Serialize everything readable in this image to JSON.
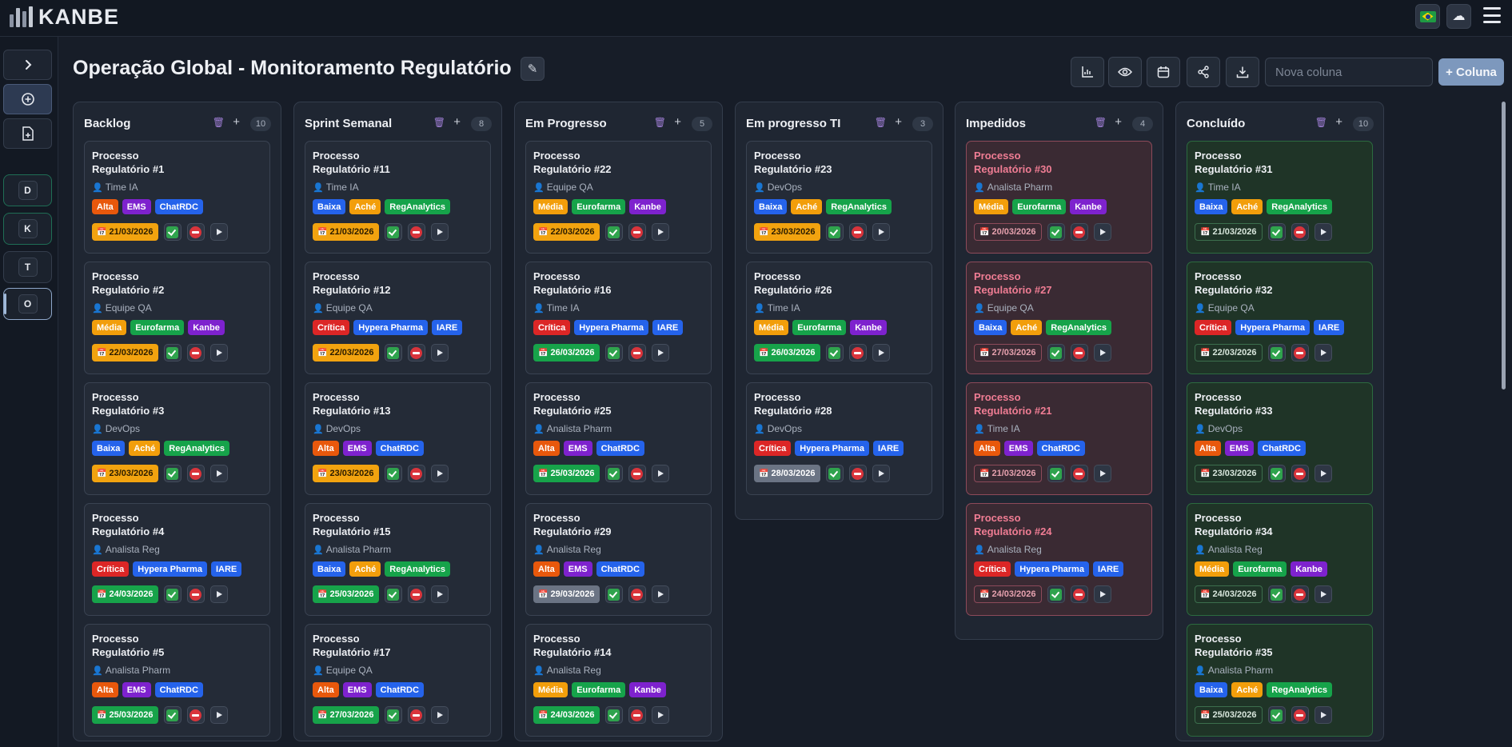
{
  "app": {
    "logo_text": "KANBE"
  },
  "header": {
    "flag_icon": "brazil-flag-icon",
    "cloud_icon": "cloud-icon",
    "menu_icon": "hamburger-menu-icon"
  },
  "sidebar": {
    "workspaces": [
      "D",
      "K",
      "T",
      "O"
    ],
    "selected": "O"
  },
  "board": {
    "title": "Operação Global - Monitoramento Regulatório",
    "new_column_placeholder": "Nova coluna",
    "add_column_label": "+ Coluna",
    "toolbar_icons": [
      "chart-icon",
      "eye-icon",
      "calendar-icon",
      "share-icon",
      "download-icon"
    ]
  },
  "columns": [
    {
      "title": "Backlog",
      "count": "10",
      "cards": [
        {
          "title": "Processo Regulatório #1",
          "owner": "Time IA",
          "tags": [
            [
              "Alta",
              "#e8580c"
            ],
            [
              "EMS",
              "#7e22ce"
            ],
            [
              "ChatRDC",
              "#2563eb"
            ]
          ],
          "date": "21/03/2026",
          "date_style": "orange"
        },
        {
          "title": "Processo Regulatório #2",
          "owner": "Equipe QA",
          "tags": [
            [
              "Média",
              "#f29e0b"
            ],
            [
              "Eurofarma",
              "#16a34a"
            ],
            [
              "Kanbe",
              "#7e22ce"
            ]
          ],
          "date": "22/03/2026",
          "date_style": "orange"
        },
        {
          "title": "Processo Regulatório #3",
          "owner": "DevOps",
          "tags": [
            [
              "Baixa",
              "#2563eb"
            ],
            [
              "Aché",
              "#f29e0b"
            ],
            [
              "RegAnalytics",
              "#16a34a"
            ]
          ],
          "date": "23/03/2026",
          "date_style": "orange"
        },
        {
          "title": "Processo Regulatório #4",
          "owner": "Analista Reg",
          "tags": [
            [
              "Crítica",
              "#dc2626"
            ],
            [
              "Hypera Pharma",
              "#2563eb"
            ],
            [
              "IARE",
              "#2563eb"
            ]
          ],
          "date": "24/03/2026",
          "date_style": "green"
        },
        {
          "title": "Processo Regulatório #5",
          "owner": "Analista Pharm",
          "tags": [
            [
              "Alta",
              "#e8580c"
            ],
            [
              "EMS",
              "#7e22ce"
            ],
            [
              "ChatRDC",
              "#2563eb"
            ]
          ],
          "date": "25/03/2026",
          "date_style": "green"
        }
      ]
    },
    {
      "title": "Sprint Semanal",
      "count": "8",
      "cards": [
        {
          "title": "Processo Regulatório #11",
          "owner": "Time IA",
          "tags": [
            [
              "Baixa",
              "#2563eb"
            ],
            [
              "Aché",
              "#f29e0b"
            ],
            [
              "RegAnalytics",
              "#16a34a"
            ]
          ],
          "date": "21/03/2026",
          "date_style": "orange"
        },
        {
          "title": "Processo Regulatório #12",
          "owner": "Equipe QA",
          "tags": [
            [
              "Crítica",
              "#dc2626"
            ],
            [
              "Hypera Pharma",
              "#2563eb"
            ],
            [
              "IARE",
              "#2563eb"
            ]
          ],
          "date": "22/03/2026",
          "date_style": "orange"
        },
        {
          "title": "Processo Regulatório #13",
          "owner": "DevOps",
          "tags": [
            [
              "Alta",
              "#e8580c"
            ],
            [
              "EMS",
              "#7e22ce"
            ],
            [
              "ChatRDC",
              "#2563eb"
            ]
          ],
          "date": "23/03/2026",
          "date_style": "orange"
        },
        {
          "title": "Processo Regulatório #15",
          "owner": "Analista Pharm",
          "tags": [
            [
              "Baixa",
              "#2563eb"
            ],
            [
              "Aché",
              "#f29e0b"
            ],
            [
              "RegAnalytics",
              "#16a34a"
            ]
          ],
          "date": "25/03/2026",
          "date_style": "green"
        },
        {
          "title": "Processo Regulatório #17",
          "owner": "Equipe QA",
          "tags": [
            [
              "Alta",
              "#e8580c"
            ],
            [
              "EMS",
              "#7e22ce"
            ],
            [
              "ChatRDC",
              "#2563eb"
            ]
          ],
          "date": "27/03/2026",
          "date_style": "green"
        }
      ]
    },
    {
      "title": "Em Progresso",
      "count": "5",
      "cards": [
        {
          "title": "Processo Regulatório #22",
          "owner": "Equipe QA",
          "tags": [
            [
              "Média",
              "#f29e0b"
            ],
            [
              "Eurofarma",
              "#16a34a"
            ],
            [
              "Kanbe",
              "#7e22ce"
            ]
          ],
          "date": "22/03/2026",
          "date_style": "orange"
        },
        {
          "title": "Processo Regulatório #16",
          "owner": "Time IA",
          "tags": [
            [
              "Crítica",
              "#dc2626"
            ],
            [
              "Hypera Pharma",
              "#2563eb"
            ],
            [
              "IARE",
              "#2563eb"
            ]
          ],
          "date": "26/03/2026",
          "date_style": "green"
        },
        {
          "title": "Processo Regulatório #25",
          "owner": "Analista Pharm",
          "tags": [
            [
              "Alta",
              "#e8580c"
            ],
            [
              "EMS",
              "#7e22ce"
            ],
            [
              "ChatRDC",
              "#2563eb"
            ]
          ],
          "date": "25/03/2026",
          "date_style": "green"
        },
        {
          "title": "Processo Regulatório #29",
          "owner": "Analista Reg",
          "tags": [
            [
              "Alta",
              "#e8580c"
            ],
            [
              "EMS",
              "#7e22ce"
            ],
            [
              "ChatRDC",
              "#2563eb"
            ]
          ],
          "date": "29/03/2026",
          "date_style": "gray"
        },
        {
          "title": "Processo Regulatório #14",
          "owner": "Analista Reg",
          "tags": [
            [
              "Média",
              "#f29e0b"
            ],
            [
              "Eurofarma",
              "#16a34a"
            ],
            [
              "Kanbe",
              "#7e22ce"
            ]
          ],
          "date": "24/03/2026",
          "date_style": "green"
        }
      ]
    },
    {
      "title": "Em progresso TI",
      "count": "3",
      "cards": [
        {
          "title": "Processo Regulatório #23",
          "owner": "DevOps",
          "tags": [
            [
              "Baixa",
              "#2563eb"
            ],
            [
              "Aché",
              "#f29e0b"
            ],
            [
              "RegAnalytics",
              "#16a34a"
            ]
          ],
          "date": "23/03/2026",
          "date_style": "orange"
        },
        {
          "title": "Processo Regulatório #26",
          "owner": "Time IA",
          "tags": [
            [
              "Média",
              "#f29e0b"
            ],
            [
              "Eurofarma",
              "#16a34a"
            ],
            [
              "Kanbe",
              "#7e22ce"
            ]
          ],
          "date": "26/03/2026",
          "date_style": "green"
        },
        {
          "title": "Processo Regulatório #28",
          "owner": "DevOps",
          "tags": [
            [
              "Crítica",
              "#dc2626"
            ],
            [
              "Hypera Pharma",
              "#2563eb"
            ],
            [
              "IARE",
              "#2563eb"
            ]
          ],
          "date": "28/03/2026",
          "date_style": "gray"
        }
      ]
    },
    {
      "title": "Impedidos",
      "count": "4",
      "variant": "imp",
      "cards": [
        {
          "title": "Processo Regulatório #30",
          "owner": "Analista Pharm",
          "tags": [
            [
              "Média",
              "#f29e0b"
            ],
            [
              "Eurofarma",
              "#16a34a"
            ],
            [
              "Kanbe",
              "#7e22ce"
            ]
          ],
          "date": "20/03/2026",
          "date_style": "outline"
        },
        {
          "title": "Processo Regulatório #27",
          "owner": "Equipe QA",
          "tags": [
            [
              "Baixa",
              "#2563eb"
            ],
            [
              "Aché",
              "#f29e0b"
            ],
            [
              "RegAnalytics",
              "#16a34a"
            ]
          ],
          "date": "27/03/2026",
          "date_style": "outline"
        },
        {
          "title": "Processo Regulatório #21",
          "owner": "Time IA",
          "tags": [
            [
              "Alta",
              "#e8580c"
            ],
            [
              "EMS",
              "#7e22ce"
            ],
            [
              "ChatRDC",
              "#2563eb"
            ]
          ],
          "date": "21/03/2026",
          "date_style": "outline"
        },
        {
          "title": "Processo Regulatório #24",
          "owner": "Analista Reg",
          "tags": [
            [
              "Crítica",
              "#dc2626"
            ],
            [
              "Hypera Pharma",
              "#2563eb"
            ],
            [
              "IARE",
              "#2563eb"
            ]
          ],
          "date": "24/03/2026",
          "date_style": "outline"
        }
      ]
    },
    {
      "title": "Concluído",
      "count": "10",
      "variant": "done",
      "cards": [
        {
          "title": "Processo Regulatório #31",
          "owner": "Time IA",
          "tags": [
            [
              "Baixa",
              "#2563eb"
            ],
            [
              "Aché",
              "#f29e0b"
            ],
            [
              "RegAnalytics",
              "#16a34a"
            ]
          ],
          "date": "21/03/2026",
          "date_style": "outline"
        },
        {
          "title": "Processo Regulatório #32",
          "owner": "Equipe QA",
          "tags": [
            [
              "Crítica",
              "#dc2626"
            ],
            [
              "Hypera Pharma",
              "#2563eb"
            ],
            [
              "IARE",
              "#2563eb"
            ]
          ],
          "date": "22/03/2026",
          "date_style": "outline"
        },
        {
          "title": "Processo Regulatório #33",
          "owner": "DevOps",
          "tags": [
            [
              "Alta",
              "#e8580c"
            ],
            [
              "EMS",
              "#7e22ce"
            ],
            [
              "ChatRDC",
              "#2563eb"
            ]
          ],
          "date": "23/03/2026",
          "date_style": "outline"
        },
        {
          "title": "Processo Regulatório #34",
          "owner": "Analista Reg",
          "tags": [
            [
              "Média",
              "#f29e0b"
            ],
            [
              "Eurofarma",
              "#16a34a"
            ],
            [
              "Kanbe",
              "#7e22ce"
            ]
          ],
          "date": "24/03/2026",
          "date_style": "outline"
        },
        {
          "title": "Processo Regulatório #35",
          "owner": "Analista Pharm",
          "tags": [
            [
              "Baixa",
              "#2563eb"
            ],
            [
              "Aché",
              "#f29e0b"
            ],
            [
              "RegAnalytics",
              "#16a34a"
            ]
          ],
          "date": "25/03/2026",
          "date_style": "outline"
        }
      ]
    }
  ]
}
